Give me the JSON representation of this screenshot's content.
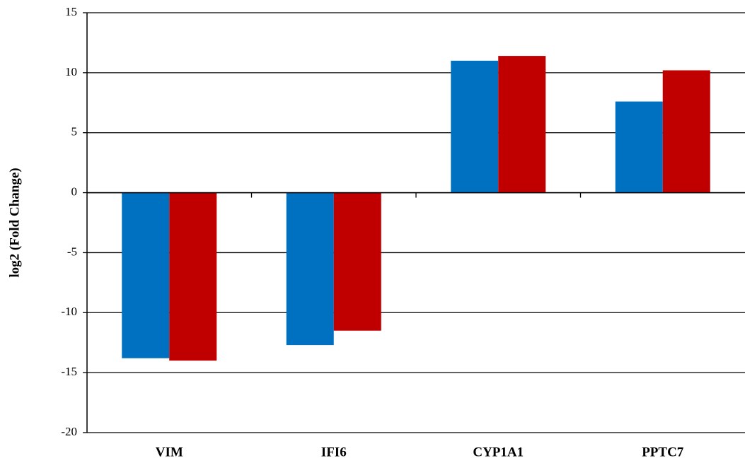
{
  "chart_data": {
    "type": "bar",
    "y_label": "log2 (Fold Change)",
    "categories": [
      "VIM",
      "IFI6",
      "CYP1A1",
      "PPTC7"
    ],
    "series": [
      {
        "color": "#0070c0",
        "values": [
          -13.8,
          -12.7,
          11.0,
          7.6
        ]
      },
      {
        "color": "#c00000",
        "values": [
          -14.0,
          -11.5,
          11.4,
          10.2
        ]
      }
    ],
    "ylim": [
      -20,
      15
    ],
    "yticks": [
      -20,
      -15,
      -10,
      -5,
      0,
      5,
      10,
      15
    ],
    "grid": true
  }
}
